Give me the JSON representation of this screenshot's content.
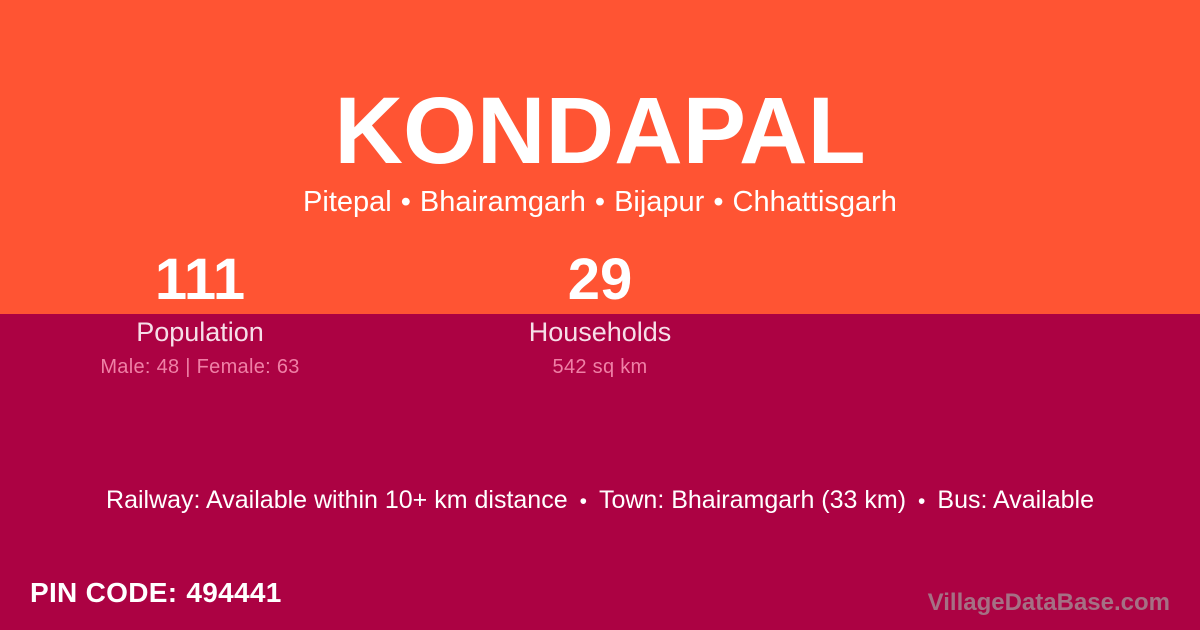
{
  "colors": {
    "hero_background": "#FF5433",
    "details_background": "#AC0243",
    "primary_text": "#FFFFFF",
    "stat_label_text": "#F6DFE8",
    "stat_detail_text": "#EF80A6",
    "watermark_text": "#A57084"
  },
  "hero": {
    "title": "KONDAPAL",
    "breadcrumb": {
      "items": [
        "Pitepal",
        "Bhairamgarh",
        "Bijapur",
        "Chhattisgarh"
      ],
      "separator": "•"
    }
  },
  "stats": {
    "population": {
      "value": "111",
      "label": "Population",
      "detail": "Male: 48 | Female: 63"
    },
    "households": {
      "value": "29",
      "label": "Households",
      "detail": "542 sq km"
    }
  },
  "transport": {
    "railway": "Railway: Available within 10+ km distance",
    "town": "Town: Bhairamgarh (33 km)",
    "bus": "Bus: Available",
    "separator": "•"
  },
  "pin": {
    "label": "PIN CODE:",
    "value": "494441"
  },
  "watermark": "VillageDataBase.com"
}
